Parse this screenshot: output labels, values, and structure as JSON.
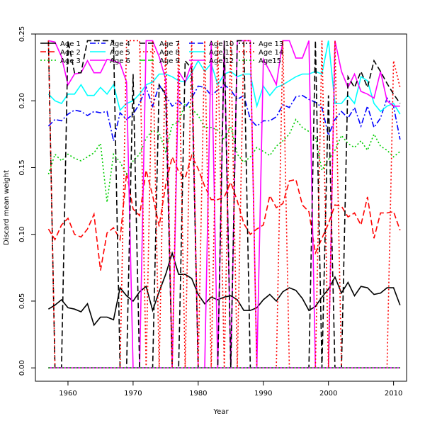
{
  "chart_data": {
    "type": "line",
    "title": "",
    "xlabel": "Year",
    "ylabel": "Discard mean weight",
    "xlim": [
      1955,
      2012
    ],
    "ylim": [
      -0.01,
      0.25
    ],
    "xticks": [
      1960,
      1970,
      1980,
      1990,
      2000,
      2010
    ],
    "yticks": [
      0.0,
      0.05,
      0.1,
      0.15,
      0.2,
      0.25
    ],
    "ytick_labels": [
      "0.00",
      "0.05",
      "0.10",
      "0.15",
      "0.20",
      "0.25"
    ],
    "grid": false,
    "legend": {
      "position": "top",
      "columns": 6
    },
    "x": [
      1957,
      1958,
      1959,
      1960,
      1961,
      1962,
      1963,
      1964,
      1965,
      1966,
      1967,
      1968,
      1969,
      1970,
      1971,
      1972,
      1973,
      1974,
      1975,
      1976,
      1977,
      1978,
      1979,
      1980,
      1981,
      1982,
      1983,
      1984,
      1985,
      1986,
      1987,
      1988,
      1989,
      1990,
      1991,
      1992,
      1993,
      1994,
      1995,
      1996,
      1997,
      1998,
      1999,
      2000,
      2001,
      2002,
      2003,
      2004,
      2005,
      2006,
      2007,
      2008,
      2009,
      2010,
      2011
    ],
    "series": [
      {
        "name": "Age 1",
        "color": "#000000",
        "dash": "solid",
        "values": [
          0.044,
          0.047,
          0.051,
          0.045,
          0.044,
          0.042,
          0.048,
          0.032,
          0.038,
          0.038,
          0.036,
          0.06,
          0.054,
          0.05,
          0.057,
          0.061,
          0.043,
          0.057,
          0.07,
          0.086,
          0.07,
          0.07,
          0.067,
          0.055,
          0.048,
          0.053,
          0.051,
          0.053,
          0.054,
          0.051,
          0.043,
          0.043,
          0.045,
          0.051,
          0.055,
          0.05,
          0.057,
          0.06,
          0.058,
          0.052,
          0.043,
          0.046,
          0.053,
          0.059,
          0.068,
          0.056,
          0.064,
          0.054,
          0.061,
          0.06,
          0.055,
          0.056,
          0.06,
          0.06,
          0.047
        ]
      },
      {
        "name": "Age 2",
        "color": "#ff0000",
        "dash": "dashed",
        "values": [
          0.104,
          0.096,
          0.107,
          0.112,
          0.1,
          0.098,
          0.104,
          0.115,
          0.073,
          0.101,
          0.105,
          0.096,
          0.146,
          0.119,
          0.114,
          0.148,
          0.129,
          0.106,
          0.137,
          0.158,
          0.147,
          0.142,
          0.159,
          0.149,
          0.136,
          0.126,
          0.126,
          0.128,
          0.139,
          0.125,
          0.108,
          0.1,
          0.104,
          0.107,
          0.129,
          0.12,
          0.123,
          0.14,
          0.141,
          0.122,
          0.117,
          0.086,
          0.097,
          0.108,
          0.122,
          0.121,
          0.113,
          0.116,
          0.107,
          0.128,
          0.097,
          0.116,
          0.116,
          0.117,
          0.103
        ]
      },
      {
        "name": "Age 3",
        "color": "#00cd00",
        "dash": "dotted",
        "values": [
          0.145,
          0.16,
          0.155,
          0.16,
          0.157,
          0.155,
          0.158,
          0.161,
          0.168,
          0.124,
          0.16,
          0.154,
          0.145,
          0.155,
          0.16,
          0.172,
          0.178,
          0.176,
          0.162,
          0.182,
          0.184,
          0.198,
          0.194,
          0.189,
          0.18,
          0.18,
          0.178,
          0.171,
          0.181,
          0.16,
          0.154,
          0.158,
          0.165,
          0.162,
          0.159,
          0.166,
          0.17,
          0.175,
          0.186,
          0.18,
          0.177,
          0.173,
          0.148,
          0.156,
          0.163,
          0.174,
          0.168,
          0.165,
          0.17,
          0.163,
          0.175,
          0.166,
          0.163,
          0.158,
          0.162
        ]
      },
      {
        "name": "Age 4",
        "color": "#0000ff",
        "dash": "dashdot",
        "values": [
          0.181,
          0.186,
          0.185,
          0.19,
          0.193,
          0.192,
          0.189,
          0.192,
          0.191,
          0.192,
          0.17,
          0.191,
          0.186,
          0.19,
          0.198,
          0.21,
          0.196,
          0.212,
          0.204,
          0.196,
          0.2,
          0.195,
          0.202,
          0.211,
          0.21,
          0.204,
          0.208,
          0.212,
          0.208,
          0.201,
          0.204,
          0.186,
          0.181,
          0.185,
          0.185,
          0.188,
          0.197,
          0.195,
          0.203,
          0.204,
          0.201,
          0.199,
          0.195,
          0.174,
          0.186,
          0.192,
          0.187,
          0.195,
          0.181,
          0.196,
          0.18,
          0.187,
          0.202,
          0.196,
          0.171
        ]
      },
      {
        "name": "Age 5",
        "color": "#00ffff",
        "dash": "solid",
        "values": [
          0.205,
          0.2,
          0.198,
          0.205,
          0.205,
          0.212,
          0.204,
          0.204,
          0.21,
          0.205,
          0.212,
          0.193,
          0.198,
          0.2,
          0.205,
          0.212,
          0.214,
          0.22,
          0.22,
          0.218,
          0.215,
          0.214,
          0.221,
          0.23,
          0.222,
          0.228,
          0.212,
          0.22,
          0.222,
          0.218,
          0.22,
          0.22,
          0.196,
          0.211,
          0.204,
          0.21,
          0.212,
          0.215,
          0.218,
          0.22,
          0.22,
          0.222,
          0.22,
          0.245,
          0.198,
          0.198,
          0.204,
          0.198,
          0.218,
          0.215,
          0.198,
          0.192,
          0.196,
          0.198,
          0.19
        ]
      },
      {
        "name": "Age 6",
        "color": "#ff00ff",
        "dash": "solid",
        "values": [
          0.245,
          0.244,
          0.233,
          0.212,
          0.22,
          0.221,
          0.23,
          0.221,
          0.221,
          0.231,
          0.23,
          0.228,
          0.214,
          0.0,
          0.0,
          0.245,
          0.245,
          0.233,
          0.216,
          0.0,
          0.222,
          0.214,
          0.228,
          0.0,
          0.0,
          0.245,
          0.0,
          0.245,
          0.0,
          0.245,
          0.245,
          0.245,
          0.0,
          0.231,
          0.222,
          0.212,
          0.245,
          0.245,
          0.232,
          0.232,
          0.245,
          0.0,
          0.0,
          0.0,
          0.245,
          0.222,
          0.21,
          0.22,
          0.207,
          0.205,
          0.202,
          0.222,
          0.2,
          0.196,
          0.196
        ]
      },
      {
        "name": "Age 7",
        "color": "#000000",
        "dash": "dashed",
        "values": [
          0.245,
          0.0,
          0.0,
          0.245,
          0.221,
          0.221,
          0.245,
          0.245,
          0.245,
          0.245,
          0.245,
          0.0,
          0.0,
          0.22,
          0.0,
          0.0,
          0.0,
          0.212,
          0.205,
          0.0,
          0.0,
          0.23,
          0.224,
          0.0,
          0.0,
          0.0,
          0.0,
          0.245,
          0.0,
          0.245,
          0.245,
          0.0,
          0.0,
          0.0,
          0.0,
          0.0,
          0.0,
          0.0,
          0.0,
          0.0,
          0.0,
          0.245,
          0.0,
          0.204,
          0.0,
          0.0,
          0.218,
          0.21,
          0.222,
          0.21,
          0.23,
          0.222,
          0.213,
          0.205,
          0.198
        ]
      },
      {
        "name": "Age 8",
        "color": "#ff0000",
        "dash": "dotted",
        "values": [
          0.245,
          0.0,
          0.0,
          0.0,
          0.0,
          0.0,
          0.0,
          0.0,
          0.0,
          0.0,
          0.0,
          0.0,
          0.245,
          0.245,
          0.245,
          0.0,
          0.245,
          0.0,
          0.245,
          0.0,
          0.245,
          0.0,
          0.245,
          0.0,
          0.245,
          0.0,
          0.245,
          0.0,
          0.245,
          0.0,
          0.245,
          0.245,
          0.0,
          0.0,
          0.0,
          0.0,
          0.245,
          0.0,
          0.0,
          0.0,
          0.0,
          0.0,
          0.245,
          0.0,
          0.245,
          0.0,
          0.0,
          0.0,
          0.0,
          0.0,
          0.0,
          0.0,
          0.0,
          0.23,
          0.21
        ]
      },
      {
        "name": "Age 9",
        "color": "#00cd00",
        "dash": "dashed",
        "values": [
          0.0,
          0.0,
          0.0,
          0.0,
          0.0,
          0.0,
          0.0,
          0.0,
          0.0,
          0.0,
          0.0,
          0.0,
          0.0,
          0.0,
          0.0,
          0.0,
          0.0,
          0.0,
          0.0,
          0.0,
          0.0,
          0.0,
          0.0,
          0.0,
          0.0,
          0.0,
          0.0,
          0.0,
          0.0,
          0.0,
          0.0,
          0.0,
          0.0,
          0.0,
          0.0,
          0.0,
          0.0,
          0.0,
          0.0,
          0.0,
          0.0,
          0.0,
          0.0,
          0.0,
          0.0,
          0.0,
          0.0,
          0.0,
          0.0,
          0.0,
          0.0,
          0.0,
          0.0,
          0.0,
          0.0
        ]
      },
      {
        "name": "Age 10",
        "color": "#0000ff",
        "dash": "dashed",
        "values": [
          0.0,
          0.0,
          0.0,
          0.0,
          0.0,
          0.0,
          0.0,
          0.0,
          0.0,
          0.0,
          0.0,
          0.0,
          0.0,
          0.0,
          0.0,
          0.0,
          0.0,
          0.0,
          0.0,
          0.0,
          0.0,
          0.0,
          0.0,
          0.0,
          0.0,
          0.0,
          0.0,
          0.0,
          0.0,
          0.0,
          0.0,
          0.0,
          0.0,
          0.0,
          0.0,
          0.0,
          0.0,
          0.0,
          0.0,
          0.0,
          0.0,
          0.0,
          0.0,
          0.0,
          0.0,
          0.0,
          0.0,
          0.0,
          0.0,
          0.0,
          0.0,
          0.0,
          0.0,
          0.0,
          0.0
        ]
      },
      {
        "name": "Age 11",
        "color": "#00ffff",
        "dash": "solid",
        "values": [
          0.0,
          0.0,
          0.0,
          0.0,
          0.0,
          0.0,
          0.0,
          0.0,
          0.0,
          0.0,
          0.0,
          0.0,
          0.0,
          0.0,
          0.0,
          0.0,
          0.0,
          0.0,
          0.0,
          0.0,
          0.0,
          0.0,
          0.0,
          0.0,
          0.0,
          0.0,
          0.0,
          0.0,
          0.0,
          0.0,
          0.0,
          0.0,
          0.0,
          0.0,
          0.0,
          0.0,
          0.0,
          0.0,
          0.0,
          0.0,
          0.0,
          0.0,
          0.0,
          0.0,
          0.0,
          0.0,
          0.0,
          0.0,
          0.0,
          0.0,
          0.0,
          0.0,
          0.0,
          0.0,
          0.0
        ]
      },
      {
        "name": "Age 12",
        "color": "#ff00ff",
        "dash": "solid",
        "values": [
          0.0,
          0.0,
          0.0,
          0.0,
          0.0,
          0.0,
          0.0,
          0.0,
          0.0,
          0.0,
          0.0,
          0.0,
          0.0,
          0.0,
          0.0,
          0.0,
          0.0,
          0.0,
          0.0,
          0.0,
          0.0,
          0.0,
          0.0,
          0.0,
          0.0,
          0.0,
          0.0,
          0.0,
          0.0,
          0.0,
          0.0,
          0.0,
          0.0,
          0.0,
          0.0,
          0.0,
          0.0,
          0.0,
          0.0,
          0.0,
          0.0,
          0.0,
          0.0,
          0.0,
          0.0,
          0.0,
          0.0,
          0.0,
          0.0,
          0.0,
          0.0,
          0.0,
          0.0,
          0.0,
          0.0
        ]
      },
      {
        "name": "Age 13",
        "color": "#000000",
        "dash": "dotted",
        "values": [
          0.0,
          0.0,
          0.0,
          0.0,
          0.0,
          0.0,
          0.0,
          0.0,
          0.0,
          0.0,
          0.0,
          0.0,
          0.0,
          0.0,
          0.0,
          0.0,
          0.0,
          0.0,
          0.0,
          0.0,
          0.0,
          0.0,
          0.0,
          0.0,
          0.0,
          0.0,
          0.0,
          0.0,
          0.0,
          0.0,
          0.0,
          0.0,
          0.0,
          0.0,
          0.0,
          0.0,
          0.0,
          0.0,
          0.0,
          0.0,
          0.0,
          0.0,
          0.0,
          0.0,
          0.0,
          0.0,
          0.0,
          0.0,
          0.0,
          0.0,
          0.0,
          0.0,
          0.0,
          0.0,
          0.0
        ]
      },
      {
        "name": "Age 14",
        "color": "#ff0000",
        "dash": "dotted",
        "values": [
          0.0,
          0.0,
          0.0,
          0.0,
          0.0,
          0.0,
          0.0,
          0.0,
          0.0,
          0.0,
          0.0,
          0.0,
          0.0,
          0.0,
          0.0,
          0.0,
          0.0,
          0.0,
          0.0,
          0.0,
          0.0,
          0.0,
          0.0,
          0.0,
          0.0,
          0.0,
          0.0,
          0.0,
          0.0,
          0.0,
          0.0,
          0.0,
          0.0,
          0.0,
          0.0,
          0.0,
          0.0,
          0.0,
          0.0,
          0.0,
          0.0,
          0.0,
          0.0,
          0.0,
          0.0,
          0.0,
          0.0,
          0.0,
          0.0,
          0.0,
          0.0,
          0.0,
          0.0,
          0.0,
          0.0
        ]
      },
      {
        "name": "Age15",
        "color": "#00cd00",
        "dash": "dotted",
        "values": [
          0.0,
          0.0,
          0.0,
          0.0,
          0.0,
          0.0,
          0.0,
          0.0,
          0.0,
          0.0,
          0.0,
          0.0,
          0.0,
          0.0,
          0.0,
          0.0,
          0.0,
          0.0,
          0.0,
          0.0,
          0.0,
          0.0,
          0.0,
          0.0,
          0.0,
          0.0,
          0.0,
          0.0,
          0.0,
          0.0,
          0.0,
          0.0,
          0.0,
          0.0,
          0.0,
          0.0,
          0.0,
          0.0,
          0.0,
          0.0,
          0.0,
          0.0,
          0.0,
          0.0,
          0.0,
          0.0,
          0.0,
          0.0,
          0.0,
          0.0,
          0.0,
          0.0,
          0.0,
          0.0,
          0.0
        ]
      }
    ]
  }
}
